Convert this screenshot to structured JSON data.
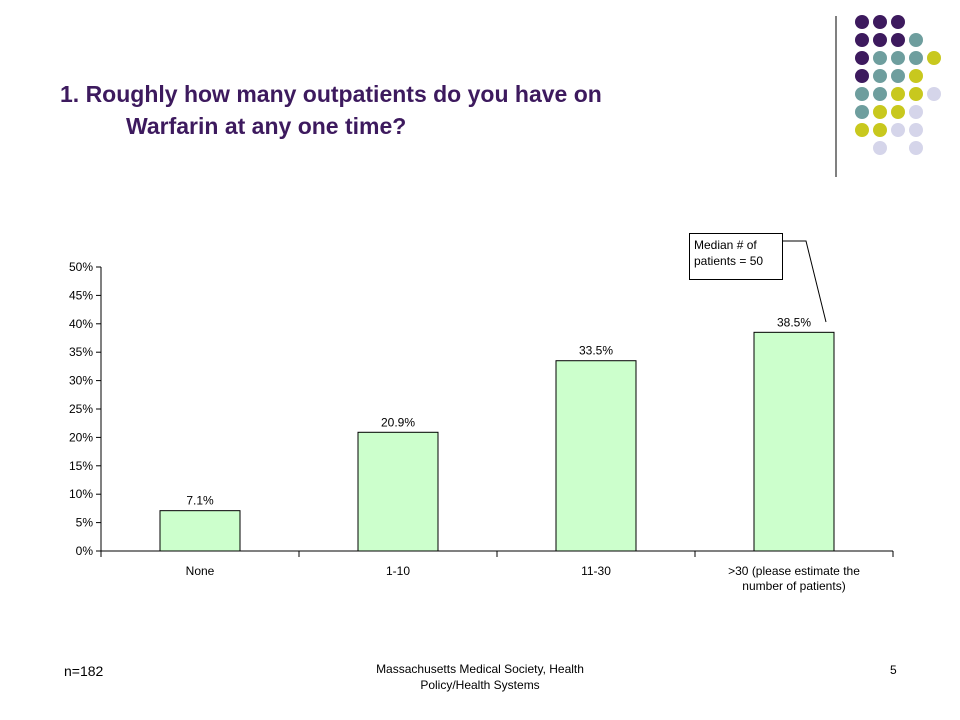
{
  "slide": {
    "title_line1": "1.  Roughly how many outpatients do you have on",
    "title_line2": "Warfarin at any one time?",
    "sample_size": "n=182",
    "footer": "Massachusetts Medical Society, Health Policy/Health Systems",
    "page_number": "5"
  },
  "colors": {
    "title": "#3d1a5e",
    "bar_fill": "#ccffcc",
    "bar_stroke": "#000000",
    "dot_purple": "#3d1a5e",
    "dot_teal": "#6e9e9e",
    "dot_yellow": "#c8c81e",
    "dot_lavender": "#d5d5ea"
  },
  "callout": {
    "text": "Median # of patients = 50"
  },
  "chart_data": {
    "type": "bar",
    "categories": [
      "None",
      "1-10",
      "11-30",
      ">30 (please estimate the number of patients)"
    ],
    "values": [
      7.1,
      20.9,
      33.5,
      38.5
    ],
    "data_labels": [
      "7.1%",
      "20.9%",
      "33.5%",
      "38.5%"
    ],
    "y_ticks": [
      "0%",
      "5%",
      "10%",
      "15%",
      "20%",
      "25%",
      "30%",
      "35%",
      "40%",
      "45%",
      "50%"
    ],
    "ylim": [
      0,
      50
    ],
    "grid": false,
    "title": "",
    "xlabel": "",
    "ylabel": ""
  }
}
